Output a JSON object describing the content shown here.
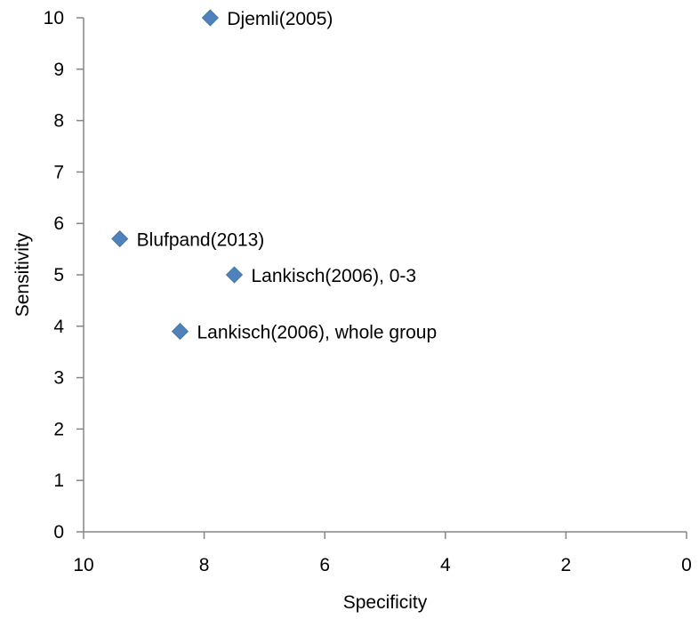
{
  "chart_data": {
    "type": "scatter",
    "title": "",
    "xlabel": "Specificity",
    "ylabel": "Sensitivity",
    "xlim": [
      10,
      0
    ],
    "ylim": [
      0,
      10
    ],
    "x_reversed": true,
    "grid": false,
    "legend": "none",
    "x_ticks": [
      10,
      8,
      6,
      4,
      2,
      0
    ],
    "y_ticks": [
      0,
      1,
      2,
      3,
      4,
      5,
      6,
      7,
      8,
      9,
      10
    ],
    "marker_color": "#4F81BD",
    "marker_shape": "diamond",
    "points": [
      {
        "label": "Djemli(2005)",
        "x": 7.9,
        "y": 10.0
      },
      {
        "label": "Blufpand(2013)",
        "x": 9.4,
        "y": 5.7
      },
      {
        "label": "Lankisch(2006), 0-3",
        "x": 7.5,
        "y": 5.0
      },
      {
        "label": "Lankisch(2006), whole group",
        "x": 8.4,
        "y": 3.9
      }
    ]
  }
}
